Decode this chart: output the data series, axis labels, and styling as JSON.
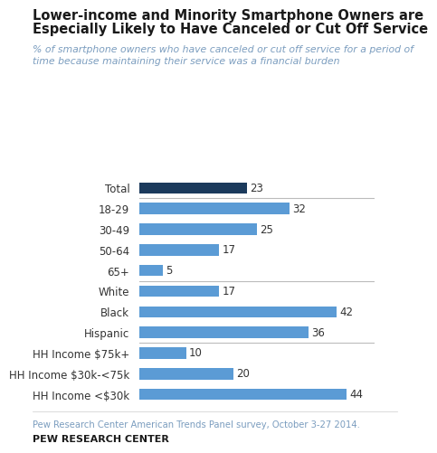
{
  "title_line1": "Lower-income and Minority Smartphone Owners are",
  "title_line2": "Especially Likely to Have Canceled or Cut Off Service",
  "subtitle": "% of smartphone owners who have canceled or cut off service for a period of\ntime because maintaining their service was a financial burden",
  "categories": [
    "Total",
    "18-29",
    "30-49",
    "50-64",
    "65+",
    "White",
    "Black",
    "Hispanic",
    "HH Income $75k+",
    "HH Income $30k-<75k",
    "HH Income <$30k"
  ],
  "values": [
    23,
    32,
    25,
    17,
    5,
    17,
    42,
    36,
    10,
    20,
    44
  ],
  "bar_colors": [
    "#1b3a5c",
    "#5b9bd5",
    "#5b9bd5",
    "#5b9bd5",
    "#5b9bd5",
    "#5b9bd5",
    "#5b9bd5",
    "#5b9bd5",
    "#5b9bd5",
    "#5b9bd5",
    "#5b9bd5"
  ],
  "separator_after_idx": [
    0,
    4,
    7
  ],
  "xlim": [
    0,
    50
  ],
  "footer_text": "Pew Research Center American Trends Panel survey, October 3-27 2014.",
  "footer_bold": "PEW RESEARCH CENTER",
  "title_color": "#1a1a1a",
  "subtitle_color": "#7b9dbf",
  "footer_color": "#7b9dbf",
  "footer_bold_color": "#1a1a1a",
  "bg_color": "#ffffff"
}
